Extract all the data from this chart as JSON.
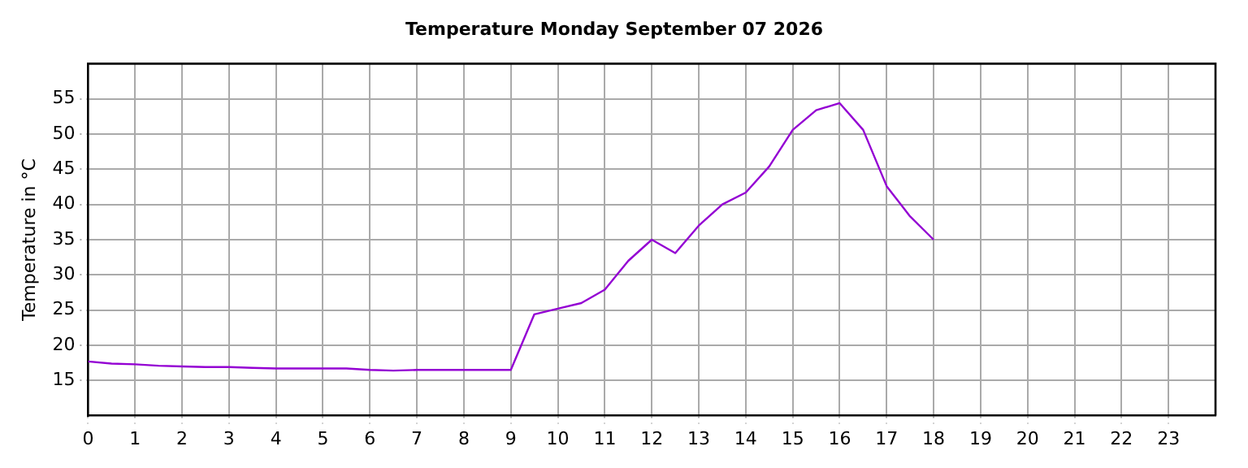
{
  "chart_data": {
    "type": "line",
    "title": "Temperature Monday September 07 2026",
    "ylabel": "Temperature in °C",
    "x": [
      0,
      0.5,
      1,
      1.5,
      2,
      2.5,
      3,
      3.5,
      4,
      4.5,
      5,
      5.5,
      6,
      6.5,
      7,
      7.5,
      8,
      8.5,
      9,
      9.5,
      10,
      10.5,
      11,
      11.5,
      12,
      12.5,
      13,
      13.5,
      14,
      14.5,
      15,
      15.5,
      16,
      16.5,
      17,
      17.5,
      18
    ],
    "series": [
      {
        "color": "#9400d3",
        "values": [
          17.7,
          17.4,
          17.3,
          17.1,
          17.0,
          16.9,
          16.9,
          16.8,
          16.7,
          16.7,
          16.7,
          16.7,
          16.5,
          16.4,
          16.5,
          16.5,
          16.5,
          16.5,
          16.5,
          24.4,
          25.2,
          26.0,
          27.9,
          32.0,
          35.0,
          33.1,
          37.0,
          40.0,
          41.7,
          45.4,
          50.6,
          53.4,
          54.4,
          50.6,
          42.6,
          38.3,
          35.0
        ]
      }
    ],
    "xlim": [
      0,
      24
    ],
    "xticks": [
      0,
      1,
      2,
      3,
      4,
      5,
      6,
      7,
      8,
      9,
      10,
      11,
      12,
      13,
      14,
      15,
      16,
      17,
      18,
      19,
      20,
      21,
      22,
      23
    ],
    "ylim": [
      10,
      60
    ],
    "yticks": [
      15,
      20,
      25,
      30,
      35,
      40,
      45,
      50,
      55
    ],
    "grid": true,
    "legend": false,
    "marker": "none",
    "line_style": "solid"
  }
}
